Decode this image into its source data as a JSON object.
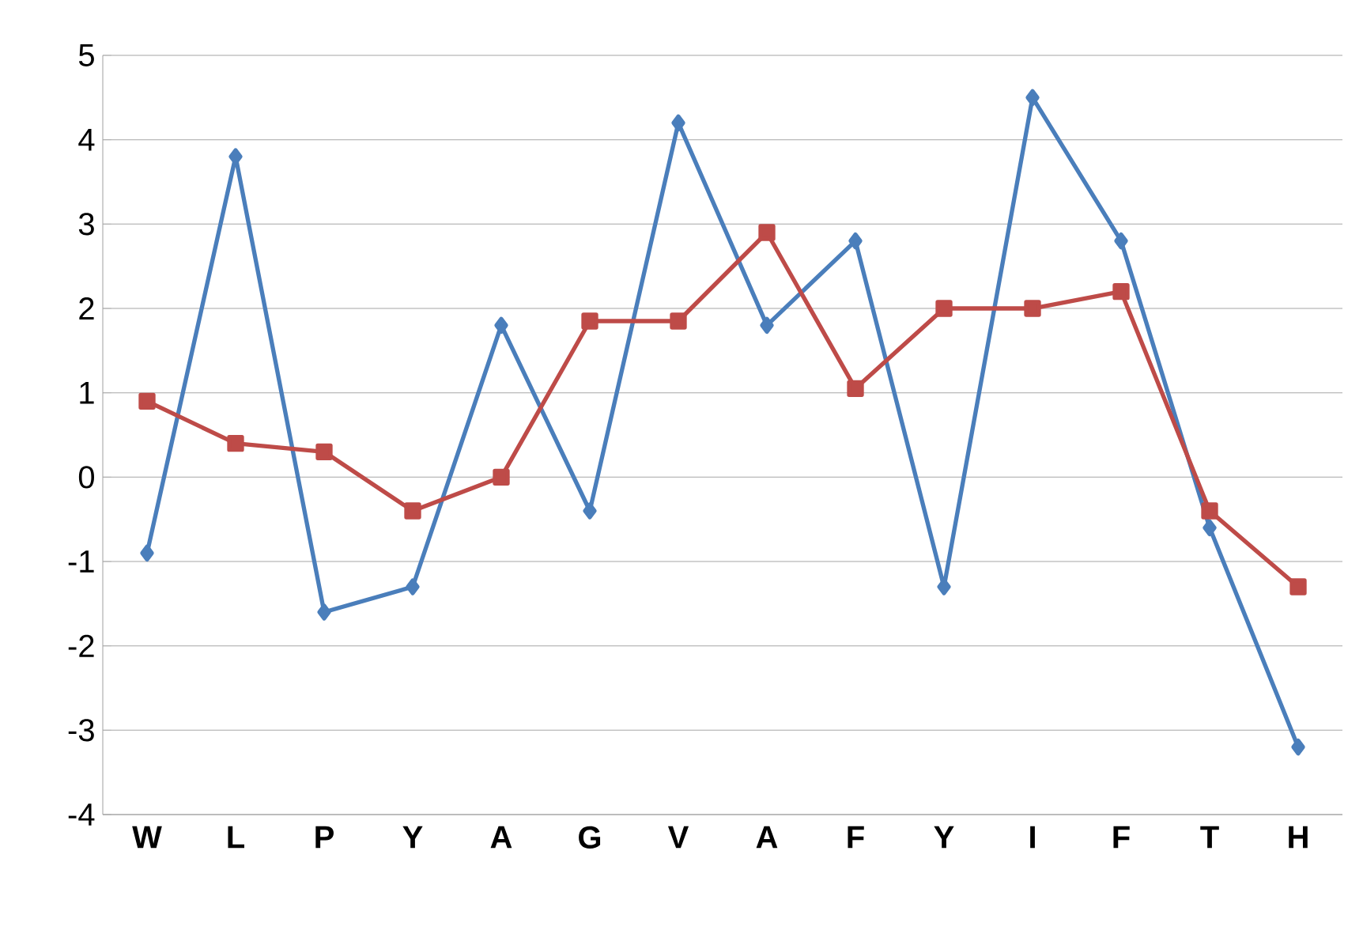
{
  "chart_data": {
    "type": "line",
    "categories": [
      "W",
      "L",
      "P",
      "Y",
      "A",
      "G",
      "V",
      "A",
      "F",
      "Y",
      "I",
      "F",
      "T",
      "H"
    ],
    "series": [
      {
        "color": "#4a7ebb",
        "marker": "diamond",
        "values": [
          -0.9,
          3.8,
          -1.6,
          -1.3,
          1.8,
          -0.4,
          4.2,
          1.8,
          2.8,
          -1.3,
          4.5,
          2.8,
          -0.6,
          -3.2
        ]
      },
      {
        "color": "#be4b48",
        "marker": "square",
        "values": [
          0.9,
          0.4,
          0.3,
          -0.4,
          0.0,
          1.85,
          1.85,
          2.9,
          1.05,
          2.0,
          2.0,
          2.2,
          -0.4,
          -1.3
        ]
      }
    ],
    "ylim": [
      -4,
      5
    ],
    "yticks": [
      -4,
      -3,
      -2,
      -1,
      0,
      1,
      2,
      3,
      4,
      5
    ],
    "grid": "y",
    "line_style": "solid"
  }
}
